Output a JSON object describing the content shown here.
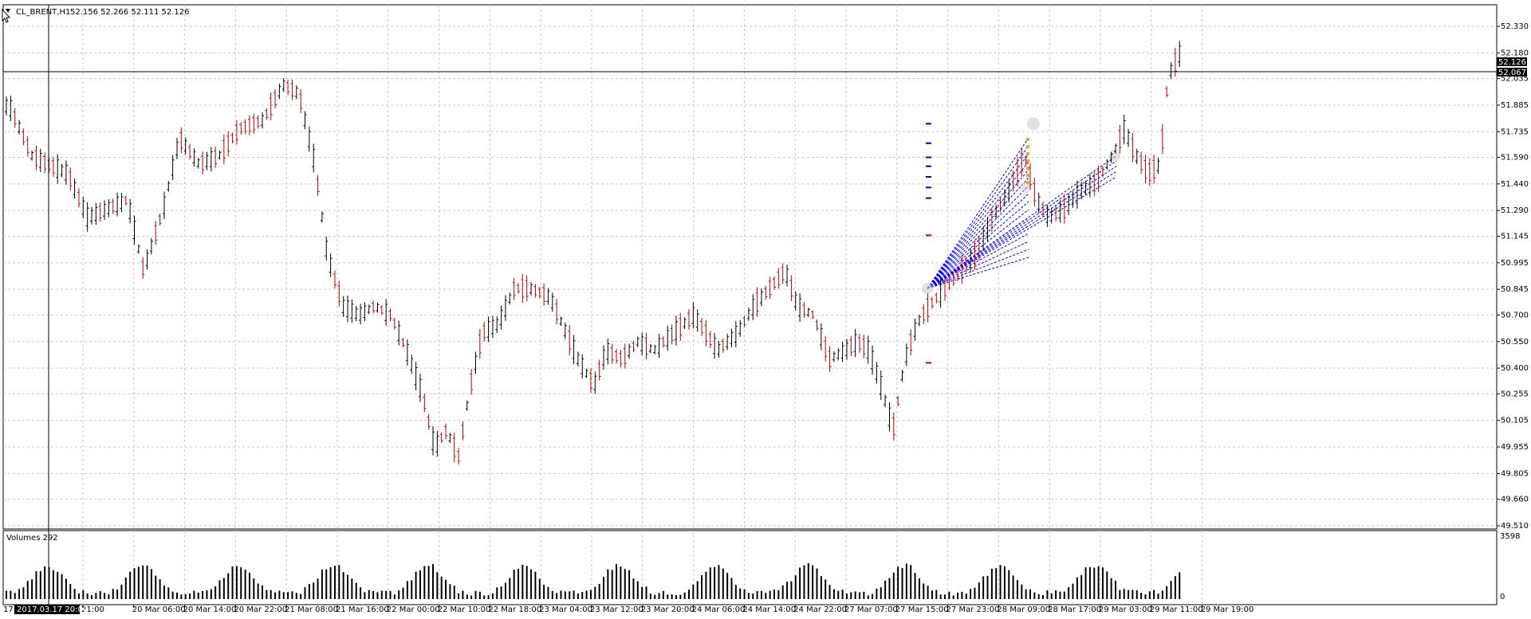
{
  "chart": {
    "symbol": "CL_BRENT,H1",
    "ohlc": "52.156 52.266 52.111 52.126",
    "volumes_label": "Volumes 292",
    "volume_axis": {
      "max_label": "3598",
      "min_label": "0"
    },
    "current_price_tag": "52.126",
    "crosshair_price_tag": "52.067",
    "crosshair_time_tag": "2017.03.17 20:00",
    "cursor_time_stub": "17",
    "price_axis_labels": [
      "52.330",
      "52.180",
      "52.035",
      "51.885",
      "51.735",
      "51.590",
      "51.440",
      "51.290",
      "51.145",
      "50.995",
      "50.845",
      "50.700",
      "50.550",
      "50.400",
      "50.255",
      "50.105",
      "49.955",
      "49.805",
      "49.660",
      "49.510"
    ],
    "time_axis_labels": [
      "21:00",
      "20 Mar 06:00",
      "20 Mar 14:00",
      "20 Mar 22:00",
      "21 Mar 08:00",
      "21 Mar 16:00",
      "22 Mar 00:00",
      "22 Mar 10:00",
      "22 Mar 18:00",
      "23 Mar 04:00",
      "23 Mar 12:00",
      "23 Mar 20:00",
      "24 Mar 06:00",
      "24 Mar 14:00",
      "24 Mar 22:00",
      "27 Mar 07:00",
      "27 Mar 15:00",
      "27 Mar 23:00",
      "28 Mar 09:00",
      "28 Mar 17:00",
      "29 Mar 03:00",
      "29 Mar 11:00",
      "29 Mar 19:00"
    ],
    "colors": {
      "bull_bar": "#000000",
      "bear_bar": "#c00000",
      "grid": "#c8c8c8",
      "fan_lines": "#0000ff",
      "tag_bg": "#000000"
    }
  }
}
